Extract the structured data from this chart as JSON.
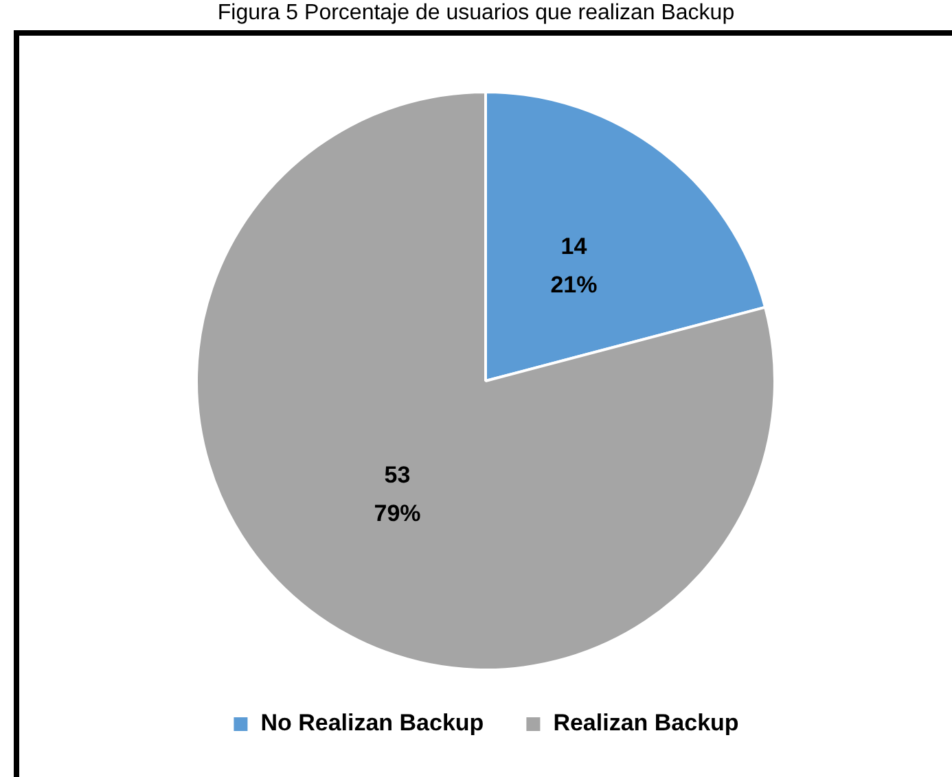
{
  "chart_data": {
    "type": "pie",
    "title": "Figura 5 Porcentaje de usuarios que realizan Backup",
    "categories": [
      "No Realizan Backup",
      "Realizan Backup"
    ],
    "values": [
      14,
      53
    ],
    "colors": [
      "#5b9bd5",
      "#a5a5a5"
    ],
    "value_labels": [
      "14\n21%",
      "53\n79%"
    ],
    "legend": "bottom"
  }
}
